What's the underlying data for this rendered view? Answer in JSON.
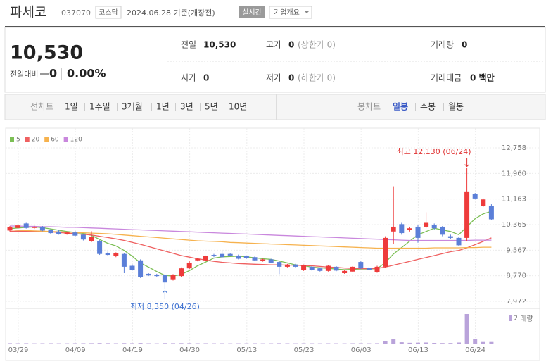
{
  "header": {
    "name": "파세코",
    "code": "037070",
    "market": "코스닥",
    "date": "2024.06.28 기준(개장전)",
    "realtime": "실시간",
    "company_info": "기업개요"
  },
  "quote": {
    "price": "10,530",
    "change_label": "전일대비",
    "change": "0",
    "change_rate": "0.00%",
    "items": [
      {
        "label": "전일",
        "value": "10,530"
      },
      {
        "label": "고가",
        "value": "0",
        "note": "(상한가 0)"
      },
      {
        "label": "거래량",
        "value": "0"
      },
      {
        "label": "시가",
        "value": "0"
      },
      {
        "label": "저가",
        "value": "0",
        "note": "(하한가 0)"
      },
      {
        "label": "거래대금",
        "value": "0 백만"
      }
    ]
  },
  "tabs": {
    "line_chart": "선차트",
    "line_periods": [
      "1일",
      "1주일",
      "3개월",
      "1년",
      "3년",
      "5년",
      "10년"
    ],
    "candle_chart": "봉차트",
    "candle_periods": [
      "일봉",
      "주봉",
      "월봉"
    ],
    "active_candle_period": 0
  },
  "chart_data": {
    "type": "candlestick",
    "categories": [
      "03/29",
      null,
      null,
      null,
      null,
      null,
      null,
      "04/09",
      null,
      null,
      null,
      null,
      null,
      null,
      "04/19",
      null,
      null,
      null,
      null,
      null,
      null,
      "04/30",
      null,
      null,
      null,
      null,
      null,
      null,
      "05/13",
      null,
      null,
      null,
      null,
      null,
      null,
      "05/23",
      null,
      null,
      null,
      null,
      null,
      null,
      "06/03",
      null,
      null,
      null,
      null,
      null,
      null,
      "06/13",
      null,
      null,
      null,
      null,
      null,
      null,
      "06/24",
      null,
      null,
      null
    ],
    "open": [
      10180,
      10260,
      10400,
      10260,
      10300,
      10200,
      10150,
      10080,
      10120,
      10050,
      9850,
      9860,
      9480,
      9380,
      9450,
      9080,
      9250,
      8830,
      8800,
      8800,
      8660,
      8760,
      9000,
      9250,
      9250,
      9420,
      9450,
      9450,
      9400,
      9380,
      9350,
      9230,
      9280,
      9200,
      9050,
      9120,
      8940,
      9050,
      9000,
      8920,
      9050,
      8850,
      8900,
      9200,
      9020,
      8880,
      9050,
      10150,
      10380,
      10200,
      10300,
      10300,
      10350,
      10300,
      10000,
      9950,
      9950,
      11320,
      10950,
      10950
    ],
    "high": [
      10320,
      10380,
      10420,
      10330,
      10320,
      10230,
      10200,
      10150,
      10170,
      10080,
      10160,
      9880,
      9520,
      9500,
      9480,
      9120,
      9280,
      8850,
      8830,
      8820,
      8820,
      9030,
      9220,
      9330,
      9400,
      9450,
      9550,
      9480,
      9430,
      9400,
      9370,
      9300,
      9300,
      9230,
      9140,
      9140,
      9120,
      9070,
      9020,
      9100,
      9070,
      8940,
      9070,
      9220,
      9040,
      9080,
      10000,
      11560,
      10420,
      10300,
      10350,
      10750,
      10400,
      10320,
      10050,
      9980,
      12130,
      11350,
      11180,
      11000
    ],
    "low": [
      10150,
      10230,
      10240,
      10230,
      10160,
      10080,
      10050,
      10050,
      10000,
      9870,
      9820,
      9420,
      9380,
      9350,
      8850,
      8930,
      8700,
      8760,
      8740,
      8350,
      8620,
      8740,
      8980,
      9220,
      9230,
      9350,
      9330,
      9380,
      9280,
      9300,
      9230,
      9210,
      9160,
      8820,
      9030,
      9030,
      8920,
      8930,
      8900,
      8900,
      8910,
      8830,
      8880,
      8980,
      8940,
      8860,
      9030,
      9750,
      10050,
      10150,
      9800,
      10250,
      10200,
      10000,
      9920,
      9700,
      9850,
      11150,
      10920,
      10500
    ],
    "close": [
      10280,
      10340,
      10260,
      10300,
      10180,
      10100,
      10080,
      10120,
      10020,
      9900,
      9980,
      9450,
      9420,
      9480,
      9050,
      8960,
      8720,
      8780,
      8760,
      8560,
      8790,
      9000,
      9180,
      9300,
      9380,
      9380,
      9350,
      9400,
      9300,
      9320,
      9250,
      9280,
      9180,
      9050,
      9120,
      9050,
      9100,
      8950,
      8920,
      9080,
      8930,
      8920,
      9050,
      9000,
      8960,
      9050,
      9950,
      10300,
      10100,
      10250,
      9950,
      10420,
      10250,
      10050,
      9950,
      9720,
      11400,
      11180,
      11150,
      10530
    ],
    "up_color": "#ee3b3b",
    "down_color": "#5b7fd8",
    "ylim": [
      7972,
      12758
    ],
    "yticks": [
      {
        "value": 12758,
        "label": "12,758"
      },
      {
        "value": 11960,
        "label": "11,960"
      },
      {
        "value": 11163,
        "label": "11,163"
      },
      {
        "value": 10365,
        "label": "10,365"
      },
      {
        "value": 9567,
        "label": "9,567"
      },
      {
        "value": 8770,
        "label": "8,770"
      },
      {
        "value": 7972,
        "label": "7,972"
      }
    ],
    "grid": true,
    "moving_averages": [
      {
        "name": "5",
        "color": "#7cbf55",
        "values": [
          10240,
          10260,
          10280,
          10290,
          10270,
          10230,
          10190,
          10150,
          10120,
          10090,
          10030,
          9900,
          9780,
          9700,
          9560,
          9380,
          9170,
          9040,
          8900,
          8780,
          8760,
          8810,
          8930,
          9080,
          9200,
          9320,
          9360,
          9370,
          9380,
          9360,
          9330,
          9300,
          9280,
          9230,
          9170,
          9110,
          9080,
          9040,
          9020,
          9000,
          8980,
          8960,
          8970,
          8980,
          8980,
          8990,
          9180,
          9450,
          9650,
          9850,
          10050,
          10150,
          10250,
          10200,
          10150,
          10050,
          10300,
          10550,
          10700,
          10780
        ]
      },
      {
        "name": "20",
        "color": "#ef6060",
        "values": [
          10150,
          10160,
          10160,
          10160,
          10150,
          10140,
          10120,
          10100,
          10080,
          10060,
          10040,
          10000,
          9960,
          9920,
          9870,
          9810,
          9750,
          9680,
          9610,
          9540,
          9470,
          9400,
          9350,
          9300,
          9260,
          9220,
          9190,
          9170,
          9150,
          9140,
          9130,
          9120,
          9110,
          9110,
          9100,
          9100,
          9090,
          9080,
          9060,
          9040,
          9030,
          9010,
          9000,
          8990,
          8990,
          9000,
          9040,
          9100,
          9160,
          9220,
          9280,
          9340,
          9400,
          9460,
          9520,
          9560,
          9640,
          9740,
          9840,
          9950
        ]
      },
      {
        "name": "60",
        "color": "#f6b24e",
        "values": [
          10200,
          10190,
          10180,
          10170,
          10160,
          10150,
          10140,
          10130,
          10120,
          10110,
          10100,
          10090,
          10080,
          10060,
          10040,
          10020,
          10000,
          9980,
          9960,
          9940,
          9920,
          9900,
          9880,
          9860,
          9850,
          9840,
          9830,
          9810,
          9800,
          9790,
          9780,
          9770,
          9760,
          9750,
          9740,
          9730,
          9720,
          9710,
          9700,
          9690,
          9680,
          9670,
          9660,
          9650,
          9640,
          9630,
          9630,
          9630,
          9630,
          9630,
          9630,
          9630,
          9640,
          9640,
          9640,
          9640,
          9650,
          9650,
          9660,
          9660
        ]
      },
      {
        "name": "120",
        "color": "#c987dd",
        "values": [
          10320,
          10320,
          10310,
          10310,
          10300,
          10300,
          10290,
          10280,
          10280,
          10270,
          10260,
          10250,
          10240,
          10230,
          10220,
          10210,
          10200,
          10190,
          10180,
          10170,
          10160,
          10150,
          10140,
          10130,
          10120,
          10110,
          10100,
          10090,
          10080,
          10070,
          10060,
          10050,
          10040,
          10030,
          10020,
          10010,
          10000,
          9990,
          9980,
          9970,
          9960,
          9950,
          9940,
          9930,
          9920,
          9910,
          9900,
          9890,
          9880,
          9870,
          9870,
          9870,
          9870,
          9870,
          9870,
          9870,
          9870,
          9880,
          9880,
          9880
        ]
      }
    ],
    "volume": {
      "label": "거래량",
      "color": "#b9a3da",
      "values": [
        15000,
        12000,
        14000,
        10000,
        12000,
        13000,
        11000,
        10000,
        12000,
        14000,
        15000,
        20000,
        16000,
        12000,
        18000,
        14000,
        22000,
        12000,
        10000,
        18000,
        15000,
        17000,
        16000,
        12000,
        13000,
        11000,
        12000,
        10000,
        11000,
        10000,
        12000,
        10000,
        11000,
        15000,
        12000,
        10000,
        12000,
        11000,
        10000,
        12000,
        11000,
        10000,
        12000,
        13000,
        11000,
        14000,
        90000,
        160000,
        50000,
        30000,
        35000,
        40000,
        25000,
        20000,
        22000,
        40000,
        1100000,
        180000,
        60000,
        60000
      ]
    },
    "high_label": "최고 12,130 (06/24)",
    "low_label": "최저 8,350 (04/26)"
  }
}
